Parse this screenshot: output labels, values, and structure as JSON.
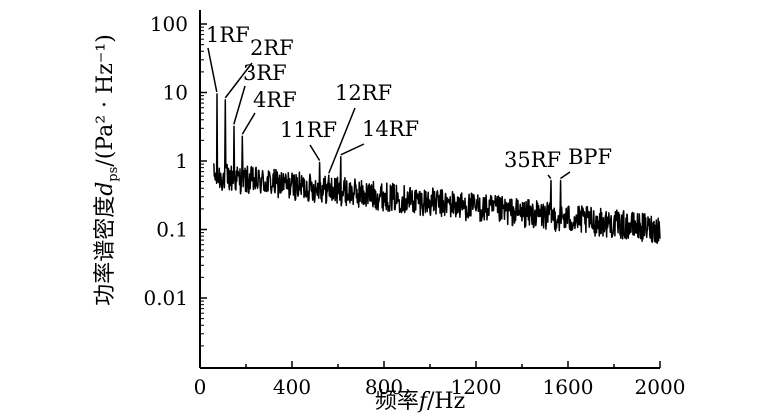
{
  "chart_data": {
    "type": "line",
    "title": "",
    "xlabel": {
      "prefix": "频率",
      "var": "f",
      "unit": "/Hz"
    },
    "ylabel": {
      "prefix": "功率谱密度",
      "var": "d",
      "sub": "ps",
      "unit": "/(Pa² · Hz⁻¹)"
    },
    "xlim": [
      0,
      2000
    ],
    "ylim": [
      0.001,
      200
    ],
    "yscale": "log",
    "grid": false,
    "x_ticks": [
      0,
      400,
      800,
      1200,
      1600,
      2000
    ],
    "x_tick_labels": [
      "0",
      "400",
      "800",
      "1200",
      "1600",
      "2000"
    ],
    "y_ticks": [
      0.01,
      0.1,
      1,
      10,
      100
    ],
    "y_tick_labels": [
      "0.01",
      "0.1",
      "1",
      "10",
      "100"
    ],
    "baseline": {
      "x": [
        60,
        2000
      ],
      "y_start": 0.6,
      "y_end": 0.1
    },
    "peaks": [
      {
        "label": "1RF",
        "x": 73,
        "y": 9.5
      },
      {
        "label": "2RF",
        "x": 110,
        "y": 7.8
      },
      {
        "label": "3RF",
        "x": 147,
        "y": 3.2
      },
      {
        "label": "4RF",
        "x": 184,
        "y": 2.3
      },
      {
        "label": "11RF",
        "x": 520,
        "y": 0.95
      },
      {
        "label": "12RF",
        "x": 560,
        "y": 0.62
      },
      {
        "label": "14RF",
        "x": 612,
        "y": 1.15
      },
      {
        "label": "35RF",
        "x": 1525,
        "y": 0.52
      },
      {
        "label": "BPF",
        "x": 1567,
        "y": 0.52
      }
    ]
  }
}
